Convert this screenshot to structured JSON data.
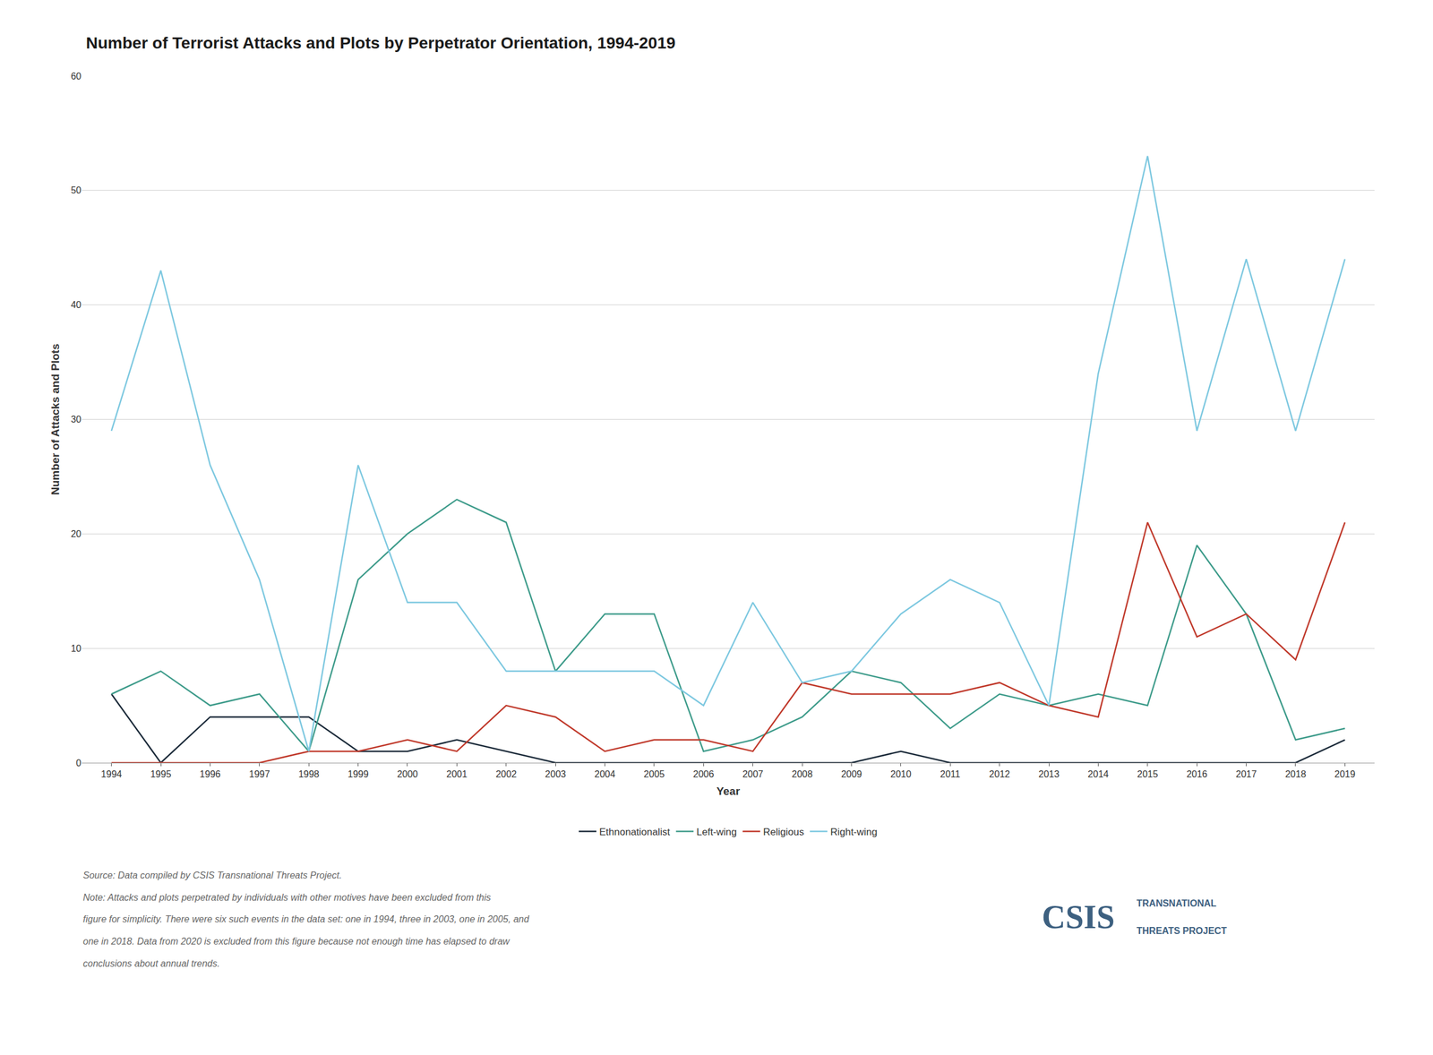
{
  "chart_data": {
    "type": "line",
    "title": "Number of Terrorist Attacks and Plots by Perpetrator Orientation, 1994-2019",
    "x_label": "Year",
    "y_label": "Number of Attacks and Plots",
    "x": [
      1994,
      1995,
      1996,
      1997,
      1998,
      1999,
      2000,
      2001,
      2002,
      2003,
      2004,
      2005,
      2006,
      2007,
      2008,
      2009,
      2010,
      2011,
      2012,
      2013,
      2014,
      2015,
      2016,
      2017,
      2018,
      2019
    ],
    "series": [
      {
        "name": "Ethnonationalist",
        "color": "#1c2b3a",
        "values": [
          6,
          0,
          4,
          4,
          4,
          1,
          1,
          2,
          1,
          0,
          0,
          0,
          0,
          0,
          0,
          0,
          1,
          0,
          0,
          0,
          0,
          0,
          0,
          0,
          0,
          2
        ]
      },
      {
        "name": "Left-wing",
        "color": "#3d9b8a",
        "values": [
          6,
          8,
          5,
          6,
          1,
          16,
          20,
          23,
          21,
          8,
          13,
          13,
          1,
          2,
          4,
          8,
          7,
          3,
          6,
          5,
          6,
          5,
          19,
          13,
          2,
          3
        ]
      },
      {
        "name": "Religious",
        "color": "#c0392b",
        "values": [
          0,
          0,
          0,
          0,
          1,
          1,
          2,
          1,
          5,
          4,
          1,
          2,
          2,
          1,
          7,
          6,
          6,
          6,
          7,
          5,
          4,
          21,
          11,
          13,
          9,
          21
        ]
      },
      {
        "name": "Right-wing",
        "color": "#7dc8e0",
        "values": [
          29,
          43,
          26,
          16,
          1,
          26,
          14,
          14,
          8,
          8,
          8,
          8,
          5,
          14,
          7,
          8,
          13,
          16,
          14,
          5,
          34,
          53,
          29,
          44,
          29,
          44
        ]
      }
    ],
    "xlim": [
      1993.4,
      2019.6
    ],
    "xticks": [
      1994,
      1995,
      1996,
      1997,
      1998,
      1999,
      2000,
      2001,
      2002,
      2003,
      2004,
      2005,
      2006,
      2007,
      2008,
      2009,
      2010,
      2011,
      2012,
      2013,
      2014,
      2015,
      2016,
      2017,
      2018,
      2019
    ],
    "ylim": [
      0,
      60
    ],
    "yticks": [
      0,
      10,
      20,
      30,
      40,
      50,
      60
    ],
    "grid": "y",
    "legend": "bottom",
    "annotations": [
      "Source: Data compiled by CSIS Transnational Threats Project.",
      "Note: Attacks and plots perpetrated by individuals with other motives have been excluded from this",
      "figure for simplicity. There were six such events in the data set: one in 1994, three in 2003, one in 2005, and",
      "one in 2018. Data from 2020 is excluded from this figure because not enough time has elapsed to draw",
      "conclusions about annual trends.",
      "CSIS",
      "TRANSNATIONAL",
      "THREATS PROJECT"
    ]
  }
}
